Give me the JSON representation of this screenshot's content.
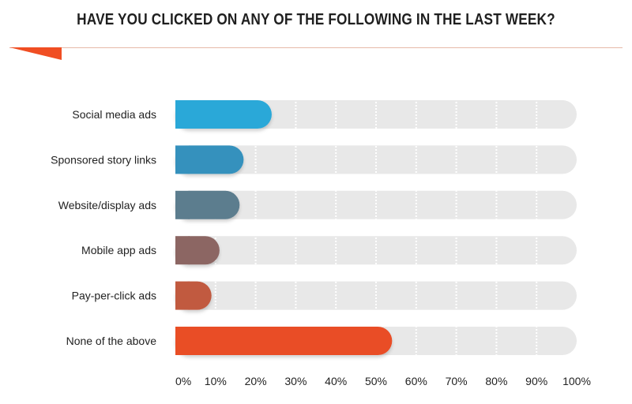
{
  "chart_data": {
    "type": "bar",
    "orientation": "horizontal",
    "title": "HAVE YOU CLICKED ON ANY OF THE FOLLOWING IN THE LAST WEEK?",
    "categories": [
      "Social media ads",
      "Sponsored story links",
      "Website/display ads",
      "Mobile app ads",
      "Pay-per-click ads",
      "None of the above"
    ],
    "values": [
      24,
      17,
      16,
      11,
      9,
      54
    ],
    "xlim": [
      0,
      100
    ],
    "x_ticks": [
      0,
      10,
      20,
      30,
      40,
      50,
      60,
      70,
      80,
      90,
      100
    ],
    "x_tick_labels": [
      "0%",
      "10%",
      "20%",
      "30%",
      "40%",
      "50%",
      "60%",
      "70%",
      "80%",
      "90%",
      "100%"
    ],
    "grid": true,
    "legend": "none",
    "colors": [
      "#2aa8d8",
      "#3591bd",
      "#5c7d8e",
      "#8c6663",
      "#c15a3f",
      "#e94e25"
    ],
    "track_color": "#e8e8e8",
    "accent_color": "#f04e23"
  }
}
